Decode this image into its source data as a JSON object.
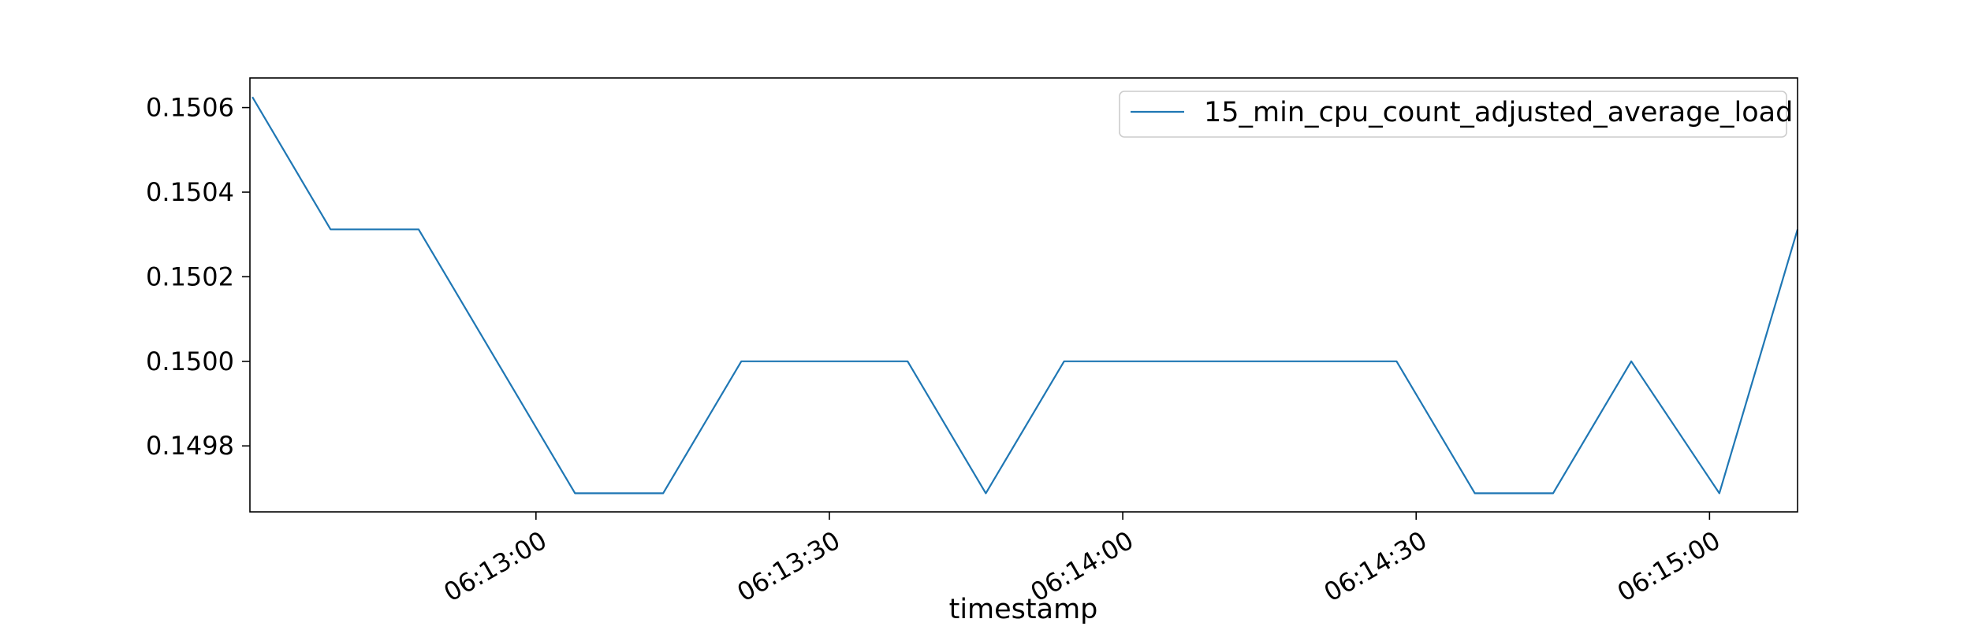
{
  "chart_data": {
    "type": "line",
    "title": "",
    "xlabel": "timestamp",
    "ylabel": "",
    "x_ticks": [
      "06:13:00",
      "06:13:30",
      "06:14:00",
      "06:14:30",
      "06:15:00"
    ],
    "y_ticks": [
      "0.1498",
      "0.1500",
      "0.1502",
      "0.1504",
      "0.1506"
    ],
    "y_tick_values": [
      0.1498,
      0.15,
      0.1502,
      0.1504,
      0.1506
    ],
    "xlim": [
      "06:12:30.75",
      "06:15:09"
    ],
    "ylim": [
      0.149644,
      0.15067
    ],
    "grid": false,
    "legend_position": "upper right",
    "series": [
      {
        "name": "15_min_cpu_count_adjusted_average_load",
        "color": "#1f77b4",
        "x": [
          "06:12:31",
          "06:12:39",
          "06:12:48",
          "06:12:56",
          "06:13:04",
          "06:13:13",
          "06:13:21",
          "06:13:29",
          "06:13:38",
          "06:13:46",
          "06:13:54",
          "06:14:03",
          "06:14:11",
          "06:14:19",
          "06:14:28",
          "06:14:36",
          "06:14:44",
          "06:14:52",
          "06:15:01",
          "06:15:09"
        ],
        "values": [
          0.150625,
          0.150312,
          0.150312,
          0.15,
          0.149688,
          0.149688,
          0.15,
          0.15,
          0.15,
          0.149688,
          0.15,
          0.15,
          0.15,
          0.15,
          0.15,
          0.149688,
          0.149688,
          0.15,
          0.149688,
          0.150312
        ]
      }
    ]
  }
}
